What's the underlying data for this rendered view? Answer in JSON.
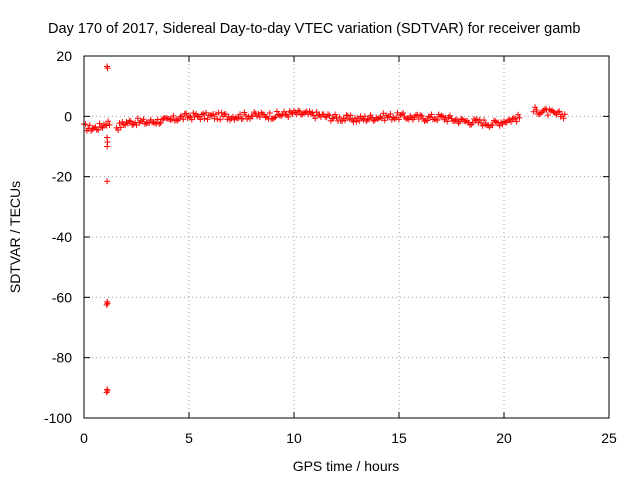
{
  "chart_data": {
    "type": "scatter",
    "title": "Day 170 of 2017, Sidereal Day-to-day VTEC variation (SDTVAR) for receiver gamb",
    "xlabel": "GPS time / hours",
    "ylabel": "SDTVAR / TECUs",
    "xlim": [
      0,
      25
    ],
    "ylim": [
      -100,
      20
    ],
    "xticks": [
      0,
      5,
      10,
      15,
      20,
      25
    ],
    "yticks": [
      -100,
      -80,
      -60,
      -40,
      -20,
      0,
      20
    ],
    "grid": true,
    "legend": "none",
    "marker": "plus",
    "color": "#ff0000",
    "outliers": [
      {
        "x": 1.1,
        "y": 16.5
      },
      {
        "x": 1.12,
        "y": 16.0
      },
      {
        "x": 1.1,
        "y": -7
      },
      {
        "x": 1.12,
        "y": -8.5
      },
      {
        "x": 1.1,
        "y": -10
      },
      {
        "x": 1.1,
        "y": -21.5
      },
      {
        "x": 1.1,
        "y": -61.5
      },
      {
        "x": 1.12,
        "y": -62.0
      },
      {
        "x": 1.08,
        "y": -62.5
      },
      {
        "x": 1.1,
        "y": -90.5
      },
      {
        "x": 1.12,
        "y": -91.0
      },
      {
        "x": 1.08,
        "y": -91.5
      }
    ],
    "trend": [
      {
        "x": 0.0,
        "y": -3.5
      },
      {
        "x": 0.3,
        "y": -4.0
      },
      {
        "x": 0.6,
        "y": -3.8
      },
      {
        "x": 0.9,
        "y": -3.0
      },
      {
        "x": 1.1,
        "y": -2.0
      },
      {
        "x": 1.6,
        "y": -3.5
      },
      {
        "x": 2.0,
        "y": -2.0
      },
      {
        "x": 2.5,
        "y": -1.8
      },
      {
        "x": 3.0,
        "y": -2.0
      },
      {
        "x": 3.5,
        "y": -1.5
      },
      {
        "x": 4.0,
        "y": -1.5
      },
      {
        "x": 4.5,
        "y": -0.5
      },
      {
        "x": 5.0,
        "y": 0.0
      },
      {
        "x": 6.0,
        "y": 0.0
      },
      {
        "x": 7.0,
        "y": 0.0
      },
      {
        "x": 8.0,
        "y": 0.3
      },
      {
        "x": 9.0,
        "y": 0.3
      },
      {
        "x": 10.0,
        "y": 1.0
      },
      {
        "x": 11.0,
        "y": 0.5
      },
      {
        "x": 12.0,
        "y": -0.5
      },
      {
        "x": 13.0,
        "y": -1.0
      },
      {
        "x": 14.0,
        "y": -0.2
      },
      {
        "x": 15.0,
        "y": 0.0
      },
      {
        "x": 16.0,
        "y": -0.5
      },
      {
        "x": 17.0,
        "y": -0.3
      },
      {
        "x": 18.0,
        "y": -1.5
      },
      {
        "x": 19.0,
        "y": -2.0
      },
      {
        "x": 19.5,
        "y": -2.5
      },
      {
        "x": 20.0,
        "y": -1.5
      },
      {
        "x": 20.7,
        "y": -0.5
      },
      {
        "x": 21.5,
        "y": 2.0
      },
      {
        "x": 22.0,
        "y": 1.5
      },
      {
        "x": 22.5,
        "y": 0.5
      },
      {
        "x": 22.9,
        "y": 0.5
      }
    ],
    "gaps": [
      [
        1.25,
        1.55
      ],
      [
        20.8,
        21.4
      ]
    ],
    "x_start": 0.0,
    "x_end": 22.9,
    "point_count": 340,
    "spread": 1.2
  }
}
